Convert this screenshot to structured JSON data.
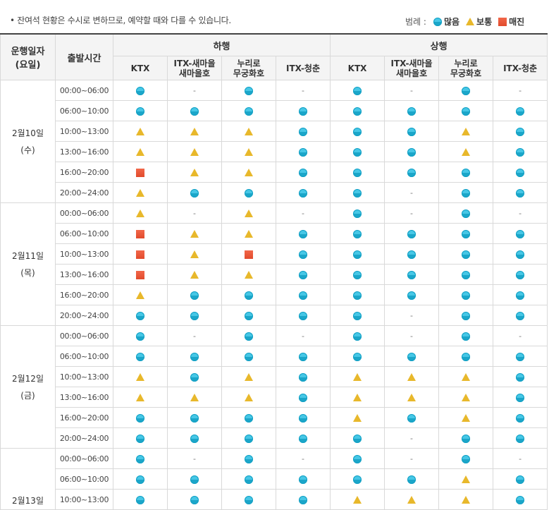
{
  "notice": "• 잔여석 현황은 수시로 변하므로, 예약할 때와 다를 수 있습니다.",
  "legend": {
    "label": "범례 :",
    "items": [
      {
        "icon": "circle-icon",
        "label": "많음",
        "color": "#2bb5d8"
      },
      {
        "icon": "triangle-icon",
        "label": "보통",
        "color": "#e8b82b"
      },
      {
        "icon": "square-icon",
        "label": "매진",
        "color": "#e8553a"
      }
    ]
  },
  "header": {
    "date_col": "운행일자\n(요일)",
    "time_col": "출발시간",
    "groups": [
      "하행",
      "상행"
    ],
    "trains": [
      "KTX",
      "ITX-새마을\n새마을호",
      "누리로\n무궁화호",
      "ITX-청춘"
    ]
  },
  "codes": {
    "C": "circle-icon",
    "T": "triangle-icon",
    "S": "square-icon",
    "D": "dash"
  },
  "dash_text": "-",
  "days": [
    {
      "date": "2월10일",
      "weekday": "(수)",
      "rows": [
        {
          "time": "00:00~06:00",
          "status": [
            "C",
            "D",
            "C",
            "D",
            "C",
            "D",
            "C",
            "D"
          ]
        },
        {
          "time": "06:00~10:00",
          "status": [
            "C",
            "C",
            "C",
            "C",
            "C",
            "C",
            "C",
            "C"
          ]
        },
        {
          "time": "10:00~13:00",
          "status": [
            "T",
            "T",
            "T",
            "C",
            "C",
            "C",
            "T",
            "C"
          ]
        },
        {
          "time": "13:00~16:00",
          "status": [
            "T",
            "T",
            "T",
            "C",
            "C",
            "C",
            "T",
            "C"
          ]
        },
        {
          "time": "16:00~20:00",
          "status": [
            "S",
            "T",
            "T",
            "C",
            "C",
            "C",
            "C",
            "C"
          ]
        },
        {
          "time": "20:00~24:00",
          "status": [
            "T",
            "C",
            "C",
            "C",
            "C",
            "D",
            "C",
            "C"
          ]
        }
      ]
    },
    {
      "date": "2월11일",
      "weekday": "(목)",
      "rows": [
        {
          "time": "00:00~06:00",
          "status": [
            "T",
            "D",
            "T",
            "D",
            "C",
            "D",
            "C",
            "D"
          ]
        },
        {
          "time": "06:00~10:00",
          "status": [
            "S",
            "T",
            "T",
            "C",
            "C",
            "C",
            "C",
            "C"
          ]
        },
        {
          "time": "10:00~13:00",
          "status": [
            "S",
            "T",
            "S",
            "C",
            "C",
            "C",
            "C",
            "C"
          ]
        },
        {
          "time": "13:00~16:00",
          "status": [
            "S",
            "T",
            "T",
            "C",
            "C",
            "C",
            "C",
            "C"
          ]
        },
        {
          "time": "16:00~20:00",
          "status": [
            "T",
            "C",
            "C",
            "C",
            "C",
            "C",
            "C",
            "C"
          ]
        },
        {
          "time": "20:00~24:00",
          "status": [
            "C",
            "C",
            "C",
            "C",
            "C",
            "D",
            "C",
            "C"
          ]
        }
      ]
    },
    {
      "date": "2월12일",
      "weekday": "(금)",
      "rows": [
        {
          "time": "00:00~06:00",
          "status": [
            "C",
            "D",
            "C",
            "D",
            "C",
            "D",
            "C",
            "D"
          ]
        },
        {
          "time": "06:00~10:00",
          "status": [
            "C",
            "C",
            "C",
            "C",
            "C",
            "C",
            "C",
            "C"
          ]
        },
        {
          "time": "10:00~13:00",
          "status": [
            "T",
            "C",
            "T",
            "C",
            "T",
            "T",
            "T",
            "C"
          ]
        },
        {
          "time": "13:00~16:00",
          "status": [
            "T",
            "T",
            "T",
            "C",
            "T",
            "T",
            "T",
            "C"
          ]
        },
        {
          "time": "16:00~20:00",
          "status": [
            "C",
            "C",
            "C",
            "C",
            "T",
            "C",
            "T",
            "C"
          ]
        },
        {
          "time": "20:00~24:00",
          "status": [
            "C",
            "C",
            "C",
            "C",
            "C",
            "D",
            "C",
            "C"
          ]
        }
      ]
    },
    {
      "date": "2월13일",
      "weekday": "",
      "rows": [
        {
          "time": "00:00~06:00",
          "status": [
            "C",
            "D",
            "C",
            "D",
            "C",
            "D",
            "C",
            "D"
          ]
        },
        {
          "time": "06:00~10:00",
          "status": [
            "C",
            "C",
            "C",
            "C",
            "C",
            "C",
            "T",
            "C"
          ]
        },
        {
          "time": "10:00~13:00",
          "status": [
            "C",
            "C",
            "C",
            "C",
            "T",
            "T",
            "T",
            "C"
          ]
        }
      ]
    }
  ]
}
